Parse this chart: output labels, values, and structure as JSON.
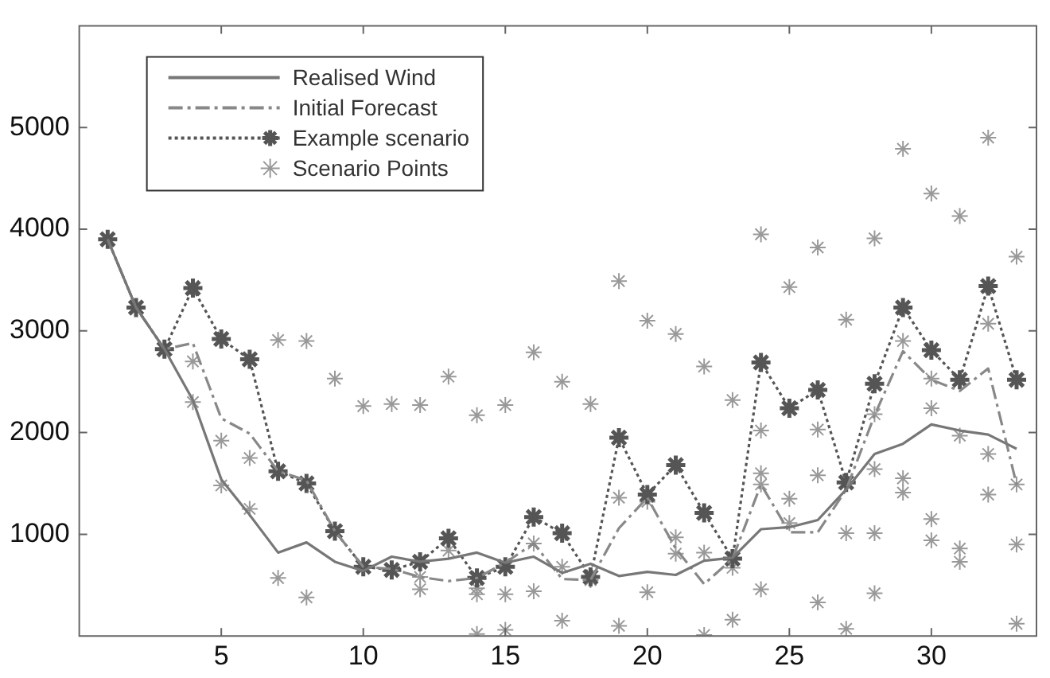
{
  "chart_data": {
    "type": "line",
    "legend": "top left",
    "grid": false,
    "x": [
      1,
      2,
      3,
      4,
      5,
      6,
      7,
      8,
      9,
      10,
      11,
      12,
      13,
      14,
      15,
      16,
      17,
      18,
      19,
      20,
      21,
      22,
      23,
      24,
      25,
      26,
      27,
      28,
      29,
      30,
      31,
      32,
      33
    ],
    "xlim": [
      0,
      33.7
    ],
    "xticks": [
      5,
      10,
      15,
      20,
      25,
      30
    ],
    "ylim": [
      0,
      6000
    ],
    "yticks": [
      1000,
      2000,
      3000,
      4000,
      5000
    ],
    "series": [
      {
        "name": "Realised Wind",
        "color": "#777777",
        "line_style": "solid",
        "marker": "none",
        "values": [
          3900,
          3230,
          2820,
          2320,
          1540,
          1190,
          820,
          920,
          730,
          640,
          780,
          730,
          760,
          820,
          720,
          780,
          620,
          710,
          590,
          630,
          600,
          740,
          770,
          1050,
          1070,
          1140,
          1440,
          1790,
          1890,
          2080,
          2020,
          1980,
          1840
        ]
      },
      {
        "name": "Initial Forecast",
        "color": "#888888",
        "line_style": "dashed",
        "marker": "none",
        "values": [
          3900,
          3230,
          2820,
          2880,
          2140,
          1990,
          1620,
          1530,
          1030,
          680,
          660,
          580,
          540,
          570,
          720,
          910,
          560,
          550,
          1060,
          1360,
          860,
          510,
          760,
          1490,
          1020,
          1020,
          1440,
          2170,
          2800,
          2520,
          2410,
          2630,
          1490
        ]
      },
      {
        "name": "Example scenario",
        "color": "#555555",
        "line_style": "dotted",
        "marker": "cross",
        "values": [
          3900,
          3230,
          2820,
          3420,
          2920,
          2720,
          1620,
          1500,
          1030,
          680,
          650,
          730,
          960,
          570,
          680,
          1170,
          1010,
          580,
          1950,
          1390,
          1680,
          1210,
          760,
          2690,
          2240,
          2420,
          1510,
          2480,
          3230,
          2810,
          2520,
          3440,
          2520
        ]
      },
      {
        "name": "Scenario Points",
        "color": "#999999",
        "type": "scatter",
        "marker": "cross",
        "x": [
          4,
          4,
          5,
          5,
          6,
          6,
          7,
          7,
          8,
          8,
          9,
          10,
          11,
          12,
          12,
          12,
          13,
          13,
          14,
          14,
          14,
          14,
          15,
          15,
          15,
          16,
          16,
          16,
          17,
          17,
          17,
          18,
          18,
          19,
          19,
          19,
          20,
          20,
          20,
          21,
          21,
          21,
          22,
          22,
          22,
          23,
          23,
          23,
          24,
          24,
          24,
          24,
          24,
          25,
          25,
          25,
          26,
          26,
          26,
          26,
          27,
          27,
          27,
          28,
          28,
          28,
          28,
          28,
          29,
          29,
          29,
          29,
          30,
          30,
          30,
          30,
          30,
          31,
          31,
          31,
          31,
          32,
          32,
          32,
          32,
          33,
          33,
          33,
          33
        ],
        "values": [
          2700,
          2300,
          1920,
          1480,
          1750,
          1250,
          2910,
          570,
          2900,
          380,
          2530,
          2260,
          2280,
          2270,
          580,
          460,
          2550,
          840,
          2170,
          470,
          410,
          20,
          2270,
          410,
          60,
          2790,
          910,
          440,
          2500,
          680,
          150,
          2280,
          550,
          3490,
          1360,
          100,
          3100,
          1320,
          430,
          2970,
          970,
          810,
          2650,
          820,
          10,
          2320,
          670,
          160,
          3950,
          2020,
          1600,
          1490,
          460,
          3430,
          1350,
          1110,
          3820,
          2030,
          1580,
          330,
          3110,
          1010,
          70,
          3910,
          2180,
          1640,
          1010,
          420,
          4790,
          2900,
          1550,
          1410,
          4350,
          2530,
          2240,
          1150,
          940,
          4130,
          1970,
          860,
          730,
          4900,
          3070,
          1790,
          1390,
          3730,
          1490,
          900,
          120
        ]
      }
    ]
  }
}
